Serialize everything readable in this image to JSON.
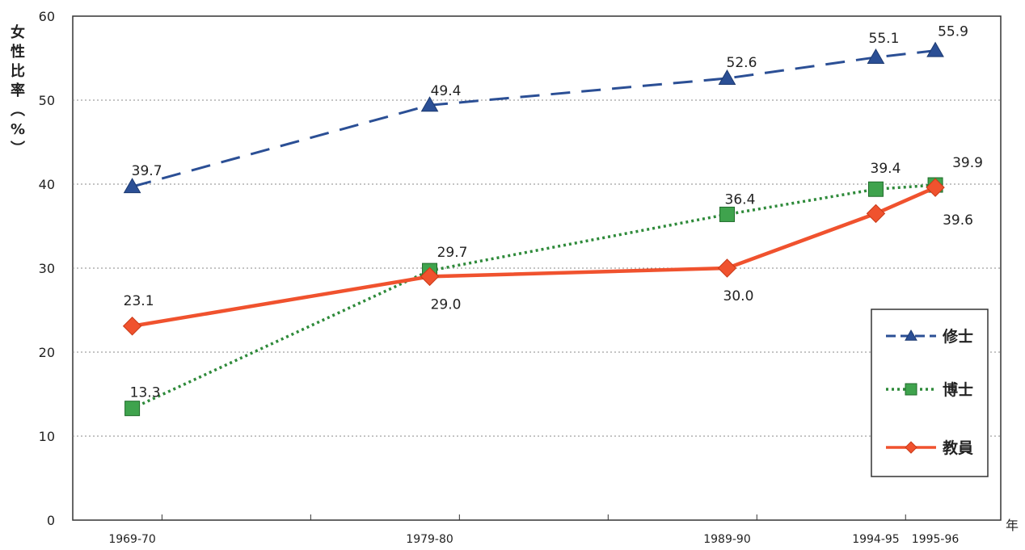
{
  "chart_data": {
    "type": "line",
    "title": "",
    "ylabel": "女性比率（%）",
    "xunit": "年",
    "categories": [
      "1969-70",
      "1979-80",
      "1989-90",
      "1994-95",
      "1995-96"
    ],
    "x": [
      1969,
      1979,
      1989,
      1994,
      1996
    ],
    "ylim": [
      0,
      60
    ],
    "yticks": [
      0,
      10,
      20,
      30,
      40,
      50,
      60
    ],
    "grid": true,
    "legend": "right",
    "series": [
      {
        "name": "修士",
        "color": "#2b4f95",
        "marker": "triangle",
        "style": "dashed",
        "values": [
          39.7,
          49.4,
          52.6,
          55.1,
          55.9
        ],
        "labels": [
          "39.7",
          "49.4",
          "52.6",
          "55.1",
          "55.9"
        ]
      },
      {
        "name": "博士",
        "color": "#2e8a3a",
        "marker": "square",
        "style": "dotted",
        "values": [
          13.3,
          29.7,
          36.4,
          39.4,
          39.9
        ],
        "labels": [
          "13.3",
          "29.7",
          "36.4",
          "39.4",
          "39.9"
        ]
      },
      {
        "name": "教員",
        "color": "#f0522e",
        "marker": "diamond",
        "style": "solid",
        "values": [
          23.1,
          29.0,
          30.0,
          36.5,
          39.6
        ],
        "labels": [
          "23.1",
          "29.0",
          "30.0",
          "",
          "39.6"
        ]
      }
    ]
  }
}
